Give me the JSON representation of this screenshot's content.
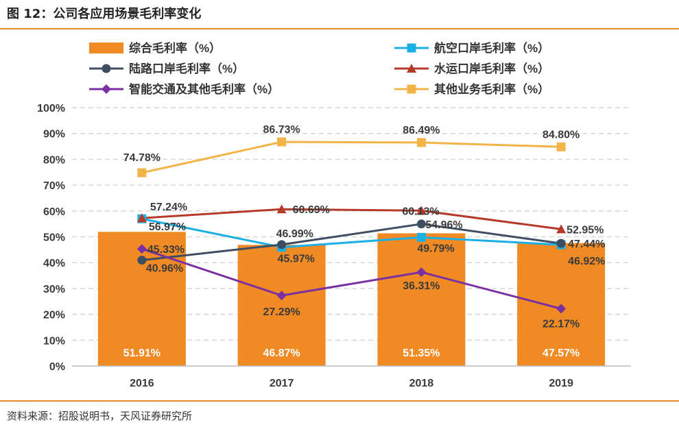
{
  "figure": {
    "title": "图 12：公司各应用场景毛利率变化",
    "source": "资料来源：招股说明书，天风证券研究所"
  },
  "colors": {
    "accent_rule": "#e8882a",
    "bar": "#f08a24",
    "airport": "#1ab0e6",
    "land_port": "#3f4d63",
    "water_port": "#b53a2a",
    "smart_transport": "#7a2fa3",
    "other": "#f2b447"
  },
  "chart_data": {
    "type": "bar+line",
    "categories": [
      "2016",
      "2017",
      "2018",
      "2019"
    ],
    "ylim": [
      0,
      100
    ],
    "yticks": [
      "0%",
      "10%",
      "20%",
      "30%",
      "40%",
      "50%",
      "60%",
      "70%",
      "80%",
      "90%",
      "100%"
    ],
    "grid": true,
    "legend_position": "top",
    "bars": {
      "name": "综合毛利率（%）",
      "values": [
        51.91,
        46.87,
        51.35,
        47.57
      ],
      "labels": [
        "51.91%",
        "46.87%",
        "51.35%",
        "47.57%"
      ]
    },
    "series": [
      {
        "key": "airport",
        "name": "航空口岸毛利率（%）",
        "marker": "square",
        "values": [
          56.97,
          45.97,
          49.79,
          46.92
        ],
        "labels": [
          "56.97%",
          "45.97%",
          "49.79%",
          "46.92%"
        ]
      },
      {
        "key": "land_port",
        "name": "陆路口岸毛利率（%）",
        "marker": "circle",
        "values": [
          40.96,
          46.99,
          54.96,
          47.44
        ],
        "labels": [
          "40.96%",
          "46.99%",
          "54.96%",
          "47.44%"
        ]
      },
      {
        "key": "water_port",
        "name": "水运口岸毛利率（%）",
        "marker": "triangle",
        "values": [
          57.24,
          60.69,
          60.13,
          52.95
        ],
        "labels": [
          "57.24%",
          "60.69%",
          "60.13%",
          "52.95%"
        ]
      },
      {
        "key": "smart_transport",
        "name": "智能交通及其他毛利率（%）",
        "marker": "diamond",
        "values": [
          45.33,
          27.29,
          36.31,
          22.17
        ],
        "labels": [
          "45.33%",
          "27.29%",
          "36.31%",
          "22.17%"
        ]
      },
      {
        "key": "other",
        "name": "其他业务毛利率（%）",
        "marker": "square",
        "values": [
          74.78,
          86.73,
          86.49,
          84.8
        ],
        "labels": [
          "74.78%",
          "86.73%",
          "86.49%",
          "84.80%"
        ]
      }
    ]
  }
}
